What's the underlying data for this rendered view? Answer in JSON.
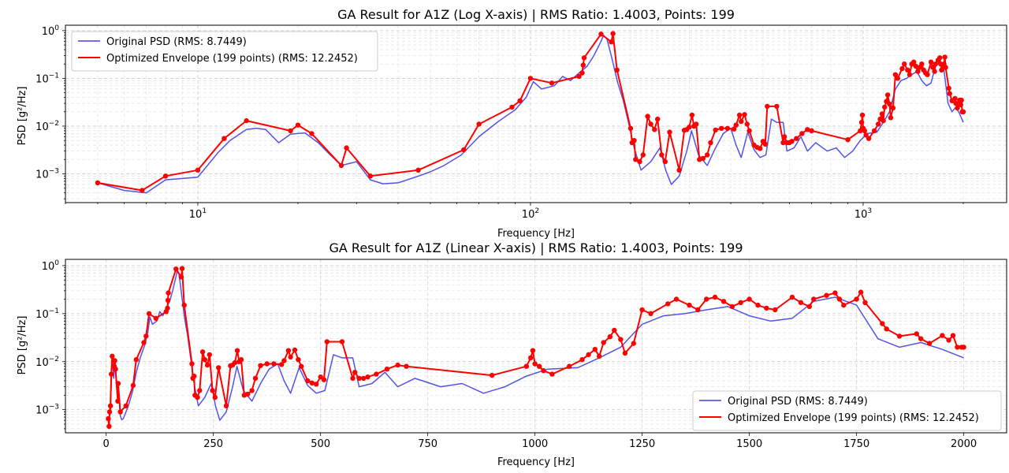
{
  "chart_data": [
    {
      "type": "line",
      "title": "GA Result for A1Z (Log X-axis) | RMS Ratio: 1.4003, Points: 199",
      "xlabel": "Frequency [Hz]",
      "ylabel": "PSD [g²/Hz]",
      "xscale": "log",
      "yscale": "log",
      "xlim": [
        4,
        2700
      ],
      "ylim": [
        0.00025,
        1.3
      ],
      "x_ticks": [
        {
          "v": 10,
          "base": "10",
          "exp": "1"
        },
        {
          "v": 100,
          "base": "10",
          "exp": "2"
        },
        {
          "v": 1000,
          "base": "10",
          "exp": "3"
        }
      ],
      "y_ticks": [
        {
          "v": 0.001,
          "base": "10",
          "exp": "−3"
        },
        {
          "v": 0.01,
          "base": "10",
          "exp": "−2"
        },
        {
          "v": 0.1,
          "base": "10",
          "exp": "−1"
        },
        {
          "v": 1,
          "base": "10",
          "exp": "0"
        }
      ],
      "grid": true,
      "legend_position": "upper-left",
      "series": [
        {
          "name": "Original PSD (RMS: 8.7449)",
          "color": "#4040e8",
          "style": "line",
          "points": [
            [
              5,
              0.00065
            ],
            [
              6,
              0.00045
            ],
            [
              7,
              0.0004
            ],
            [
              8,
              0.00075
            ],
            [
              10,
              0.00085
            ],
            [
              11.5,
              0.0028
            ],
            [
              12.5,
              0.005
            ],
            [
              14,
              0.0085
            ],
            [
              15,
              0.009
            ],
            [
              16,
              0.0085
            ],
            [
              17.5,
              0.0045
            ],
            [
              19,
              0.0068
            ],
            [
              21,
              0.0072
            ],
            [
              23,
              0.0045
            ],
            [
              25,
              0.0025
            ],
            [
              27,
              0.0015
            ],
            [
              30,
              0.0018
            ],
            [
              33,
              0.00075
            ],
            [
              36,
              0.00062
            ],
            [
              40,
              0.00065
            ],
            [
              45,
              0.00085
            ],
            [
              50,
              0.0011
            ],
            [
              55,
              0.0015
            ],
            [
              62,
              0.0025
            ],
            [
              70,
              0.006
            ],
            [
              80,
              0.0125
            ],
            [
              90,
              0.022
            ],
            [
              97,
              0.04
            ],
            [
              102,
              0.085
            ],
            [
              108,
              0.06
            ],
            [
              118,
              0.07
            ],
            [
              125,
              0.11
            ],
            [
              132,
              0.09
            ],
            [
              140,
              0.13
            ],
            [
              148,
              0.18
            ],
            [
              155,
              0.3
            ],
            [
              162,
              0.55
            ],
            [
              166,
              0.8
            ],
            [
              170,
              0.65
            ],
            [
              176,
              0.25
            ],
            [
              183,
              0.08
            ],
            [
              190,
              0.035
            ],
            [
              197,
              0.012
            ],
            [
              205,
              0.0035
            ],
            [
              215,
              0.0012
            ],
            [
              230,
              0.0018
            ],
            [
              245,
              0.0035
            ],
            [
              255,
              0.0012
            ],
            [
              265,
              0.0006
            ],
            [
              280,
              0.0009
            ],
            [
              295,
              0.003
            ],
            [
              305,
              0.008
            ],
            [
              320,
              0.0025
            ],
            [
              340,
              0.0015
            ],
            [
              360,
              0.0035
            ],
            [
              380,
              0.007
            ],
            [
              400,
              0.009
            ],
            [
              415,
              0.004
            ],
            [
              430,
              0.0022
            ],
            [
              450,
              0.0075
            ],
            [
              470,
              0.0032
            ],
            [
              490,
              0.0022
            ],
            [
              510,
              0.0025
            ],
            [
              530,
              0.014
            ],
            [
              550,
              0.012
            ],
            [
              575,
              0.012
            ],
            [
              590,
              0.003
            ],
            [
              620,
              0.0035
            ],
            [
              650,
              0.006
            ],
            [
              680,
              0.003
            ],
            [
              720,
              0.0045
            ],
            [
              780,
              0.003
            ],
            [
              830,
              0.0035
            ],
            [
              880,
              0.0022
            ],
            [
              930,
              0.003
            ],
            [
              980,
              0.005
            ],
            [
              1030,
              0.007
            ],
            [
              1100,
              0.0075
            ],
            [
              1150,
              0.012
            ],
            [
              1200,
              0.02
            ],
            [
              1250,
              0.06
            ],
            [
              1300,
              0.09
            ],
            [
              1350,
              0.1
            ],
            [
              1400,
              0.12
            ],
            [
              1450,
              0.14
            ],
            [
              1500,
              0.09
            ],
            [
              1550,
              0.07
            ],
            [
              1600,
              0.08
            ],
            [
              1650,
              0.18
            ],
            [
              1700,
              0.22
            ],
            [
              1750,
              0.15
            ],
            [
              1800,
              0.03
            ],
            [
              1850,
              0.02
            ],
            [
              1900,
              0.025
            ],
            [
              1950,
              0.018
            ],
            [
              2000,
              0.012
            ]
          ]
        },
        {
          "name": "Optimized Envelope (199 points) (RMS: 12.2452)",
          "color": "#ff0000",
          "style": "line-markers",
          "points": [
            [
              5,
              0.00065
            ],
            [
              6.8,
              0.00045
            ],
            [
              8,
              0.0009
            ],
            [
              10,
              0.0012
            ],
            [
              12,
              0.0055
            ],
            [
              14,
              0.013
            ],
            [
              19,
              0.008
            ],
            [
              20,
              0.0105
            ],
            [
              22,
              0.007
            ],
            [
              27,
              0.0015
            ],
            [
              28,
              0.0035
            ],
            [
              33,
              0.0009
            ],
            [
              46,
              0.0012
            ],
            [
              63,
              0.0032
            ],
            [
              70,
              0.011
            ],
            [
              88,
              0.025
            ],
            [
              93,
              0.034
            ],
            [
              100,
              0.1
            ],
            [
              116,
              0.08
            ],
            [
              140,
              0.11
            ],
            [
              143,
              0.13
            ],
            [
              144,
              0.19
            ],
            [
              145,
              0.27
            ],
            [
              163,
              0.85
            ],
            [
              175,
              0.58
            ],
            [
              177,
              0.87
            ],
            [
              182,
              0.15
            ],
            [
              200,
              0.009
            ],
            [
              202,
              0.0045
            ],
            [
              205,
              0.005
            ],
            [
              207,
              0.002
            ],
            [
              213,
              0.0018
            ],
            [
              218,
              0.0025
            ],
            [
              225,
              0.016
            ],
            [
              230,
              0.011
            ],
            [
              236,
              0.0085
            ],
            [
              241,
              0.014
            ],
            [
              248,
              0.0025
            ],
            [
              254,
              0.0018
            ],
            [
              262,
              0.0075
            ],
            [
              280,
              0.0012
            ],
            [
              290,
              0.0082
            ],
            [
              295,
              0.0085
            ],
            [
              300,
              0.0095
            ],
            [
              306,
              0.017
            ],
            [
              310,
              0.01
            ],
            [
              315,
              0.011
            ],
            [
              322,
              0.002
            ],
            [
              330,
              0.0021
            ],
            [
              340,
              0.0025
            ],
            [
              348,
              0.0045
            ],
            [
              360,
              0.0083
            ],
            [
              375,
              0.009
            ],
            [
              391,
              0.009
            ],
            [
              409,
              0.0087
            ],
            [
              415,
              0.0105
            ],
            [
              425,
              0.017
            ],
            [
              430,
              0.0125
            ],
            [
              440,
              0.0175
            ],
            [
              448,
              0.011
            ],
            [
              455,
              0.008
            ],
            [
              470,
              0.004
            ],
            [
              480,
              0.0036
            ],
            [
              490,
              0.0034
            ],
            [
              500,
              0.0048
            ],
            [
              508,
              0.0042
            ],
            [
              515,
              0.026
            ],
            [
              550,
              0.026
            ],
            [
              575,
              0.0045
            ],
            [
              580,
              0.006
            ],
            [
              590,
              0.0045
            ],
            [
              600,
              0.0045
            ],
            [
              610,
              0.0048
            ],
            [
              630,
              0.0055
            ],
            [
              655,
              0.007
            ],
            [
              680,
              0.0085
            ],
            [
              700,
              0.008
            ],
            [
              900,
              0.0052
            ],
            [
              980,
              0.008
            ],
            [
              990,
              0.012
            ],
            [
              995,
              0.017
            ],
            [
              1000,
              0.009
            ],
            [
              1010,
              0.008
            ],
            [
              1020,
              0.0065
            ],
            [
              1040,
              0.0055
            ],
            [
              1080,
              0.008
            ],
            [
              1110,
              0.011
            ],
            [
              1125,
              0.014
            ],
            [
              1140,
              0.018
            ],
            [
              1150,
              0.013
            ],
            [
              1160,
              0.025
            ],
            [
              1175,
              0.033
            ],
            [
              1185,
              0.045
            ],
            [
              1200,
              0.029
            ],
            [
              1210,
              0.015
            ],
            [
              1230,
              0.024
            ],
            [
              1250,
              0.12
            ],
            [
              1270,
              0.1
            ],
            [
              1310,
              0.16
            ],
            [
              1330,
              0.2
            ],
            [
              1360,
              0.15
            ],
            [
              1380,
              0.12
            ],
            [
              1400,
              0.2
            ],
            [
              1420,
              0.22
            ],
            [
              1440,
              0.18
            ],
            [
              1460,
              0.14
            ],
            [
              1480,
              0.17
            ],
            [
              1500,
              0.2
            ],
            [
              1520,
              0.15
            ],
            [
              1540,
              0.13
            ],
            [
              1560,
              0.12
            ],
            [
              1600,
              0.22
            ],
            [
              1620,
              0.17
            ],
            [
              1640,
              0.14
            ],
            [
              1650,
              0.2
            ],
            [
              1680,
              0.24
            ],
            [
              1700,
              0.27
            ],
            [
              1710,
              0.2
            ],
            [
              1720,
              0.15
            ],
            [
              1750,
              0.2
            ],
            [
              1760,
              0.28
            ],
            [
              1770,
              0.17
            ],
            [
              1810,
              0.062
            ],
            [
              1820,
              0.048
            ],
            [
              1850,
              0.034
            ],
            [
              1890,
              0.038
            ],
            [
              1900,
              0.03
            ],
            [
              1920,
              0.024
            ],
            [
              1950,
              0.035
            ],
            [
              1965,
              0.028
            ],
            [
              1975,
              0.035
            ],
            [
              1985,
              0.02
            ],
            [
              1995,
              0.02
            ],
            [
              2000,
              0.02
            ]
          ]
        }
      ]
    },
    {
      "type": "line",
      "title": "GA Result for A1Z (Linear X-axis) | RMS Ratio: 1.4003, Points: 199",
      "xlabel": "Frequency [Hz]",
      "ylabel": "PSD [g²/Hz]",
      "xscale": "linear",
      "yscale": "log",
      "xlim": [
        -95,
        2100
      ],
      "ylim": [
        0.00033,
        1.35
      ],
      "x_ticks": [
        {
          "v": 0,
          "label": "0"
        },
        {
          "v": 250,
          "label": "250"
        },
        {
          "v": 500,
          "label": "500"
        },
        {
          "v": 750,
          "label": "750"
        },
        {
          "v": 1000,
          "label": "1000"
        },
        {
          "v": 1250,
          "label": "1250"
        },
        {
          "v": 1500,
          "label": "1500"
        },
        {
          "v": 1750,
          "label": "1750"
        },
        {
          "v": 2000,
          "label": "2000"
        }
      ],
      "y_ticks": [
        {
          "v": 0.001,
          "base": "10",
          "exp": "−3"
        },
        {
          "v": 0.01,
          "base": "10",
          "exp": "−2"
        },
        {
          "v": 0.1,
          "base": "10",
          "exp": "−1"
        },
        {
          "v": 1,
          "base": "10",
          "exp": "0"
        }
      ],
      "grid": true,
      "legend_position": "lower-right",
      "series_ref": "same as log-x panel",
      "legend": [
        "Original PSD (RMS: 8.7449)",
        "Optimized Envelope (199 points) (RMS: 12.2452)"
      ]
    }
  ]
}
